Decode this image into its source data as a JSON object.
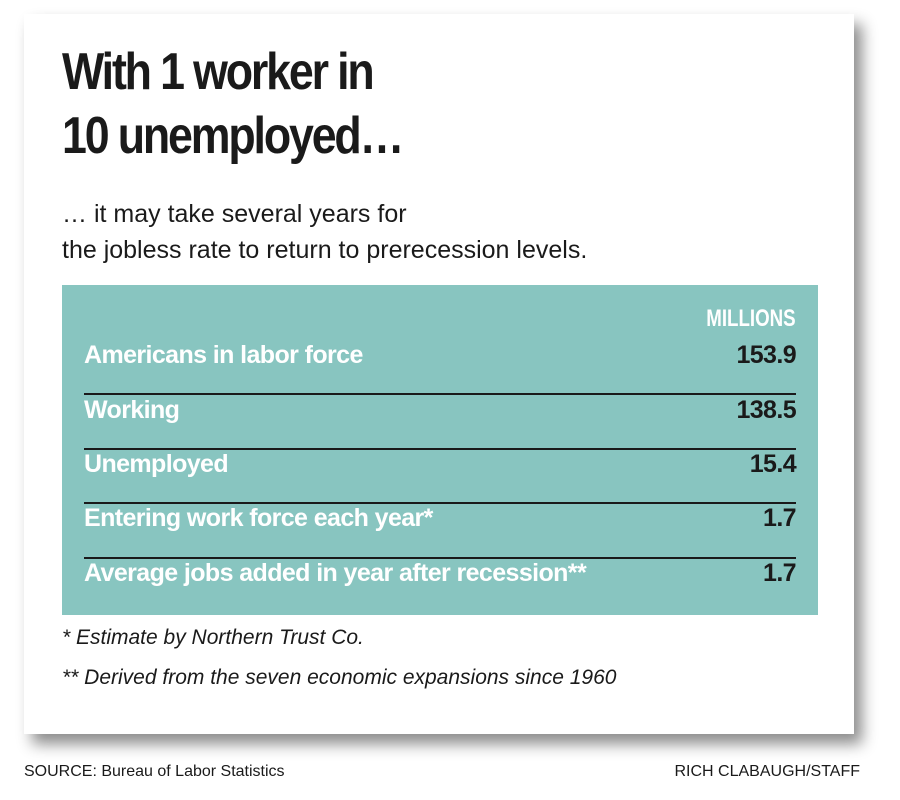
{
  "title": [
    "With 1 worker in",
    "10 unemployed…"
  ],
  "subtitle": [
    "… it may take several years for",
    "the jobless rate to return to prerecession levels."
  ],
  "chart_data": {
    "type": "table",
    "unit_label": "MILLIONS",
    "rows": [
      {
        "label": "Americans in labor force",
        "value": "153.9"
      },
      {
        "label": "Working",
        "value": "138.5"
      },
      {
        "label": "Unemployed",
        "value": "15.4"
      },
      {
        "label": "Entering work force each year*",
        "value": "1.7"
      },
      {
        "label": "Average jobs added in year after recession**",
        "value": "1.7"
      }
    ]
  },
  "footnotes": [
    "* Estimate by Northern Trust Co.",
    "** Derived from the seven economic expansions since 1960"
  ],
  "source": "SOURCE: Bureau of Labor Statistics",
  "credit": "RICH CLABAUGH/STAFF",
  "colors": {
    "table_bg": "#88c5c0",
    "text": "#1a1a1a"
  }
}
